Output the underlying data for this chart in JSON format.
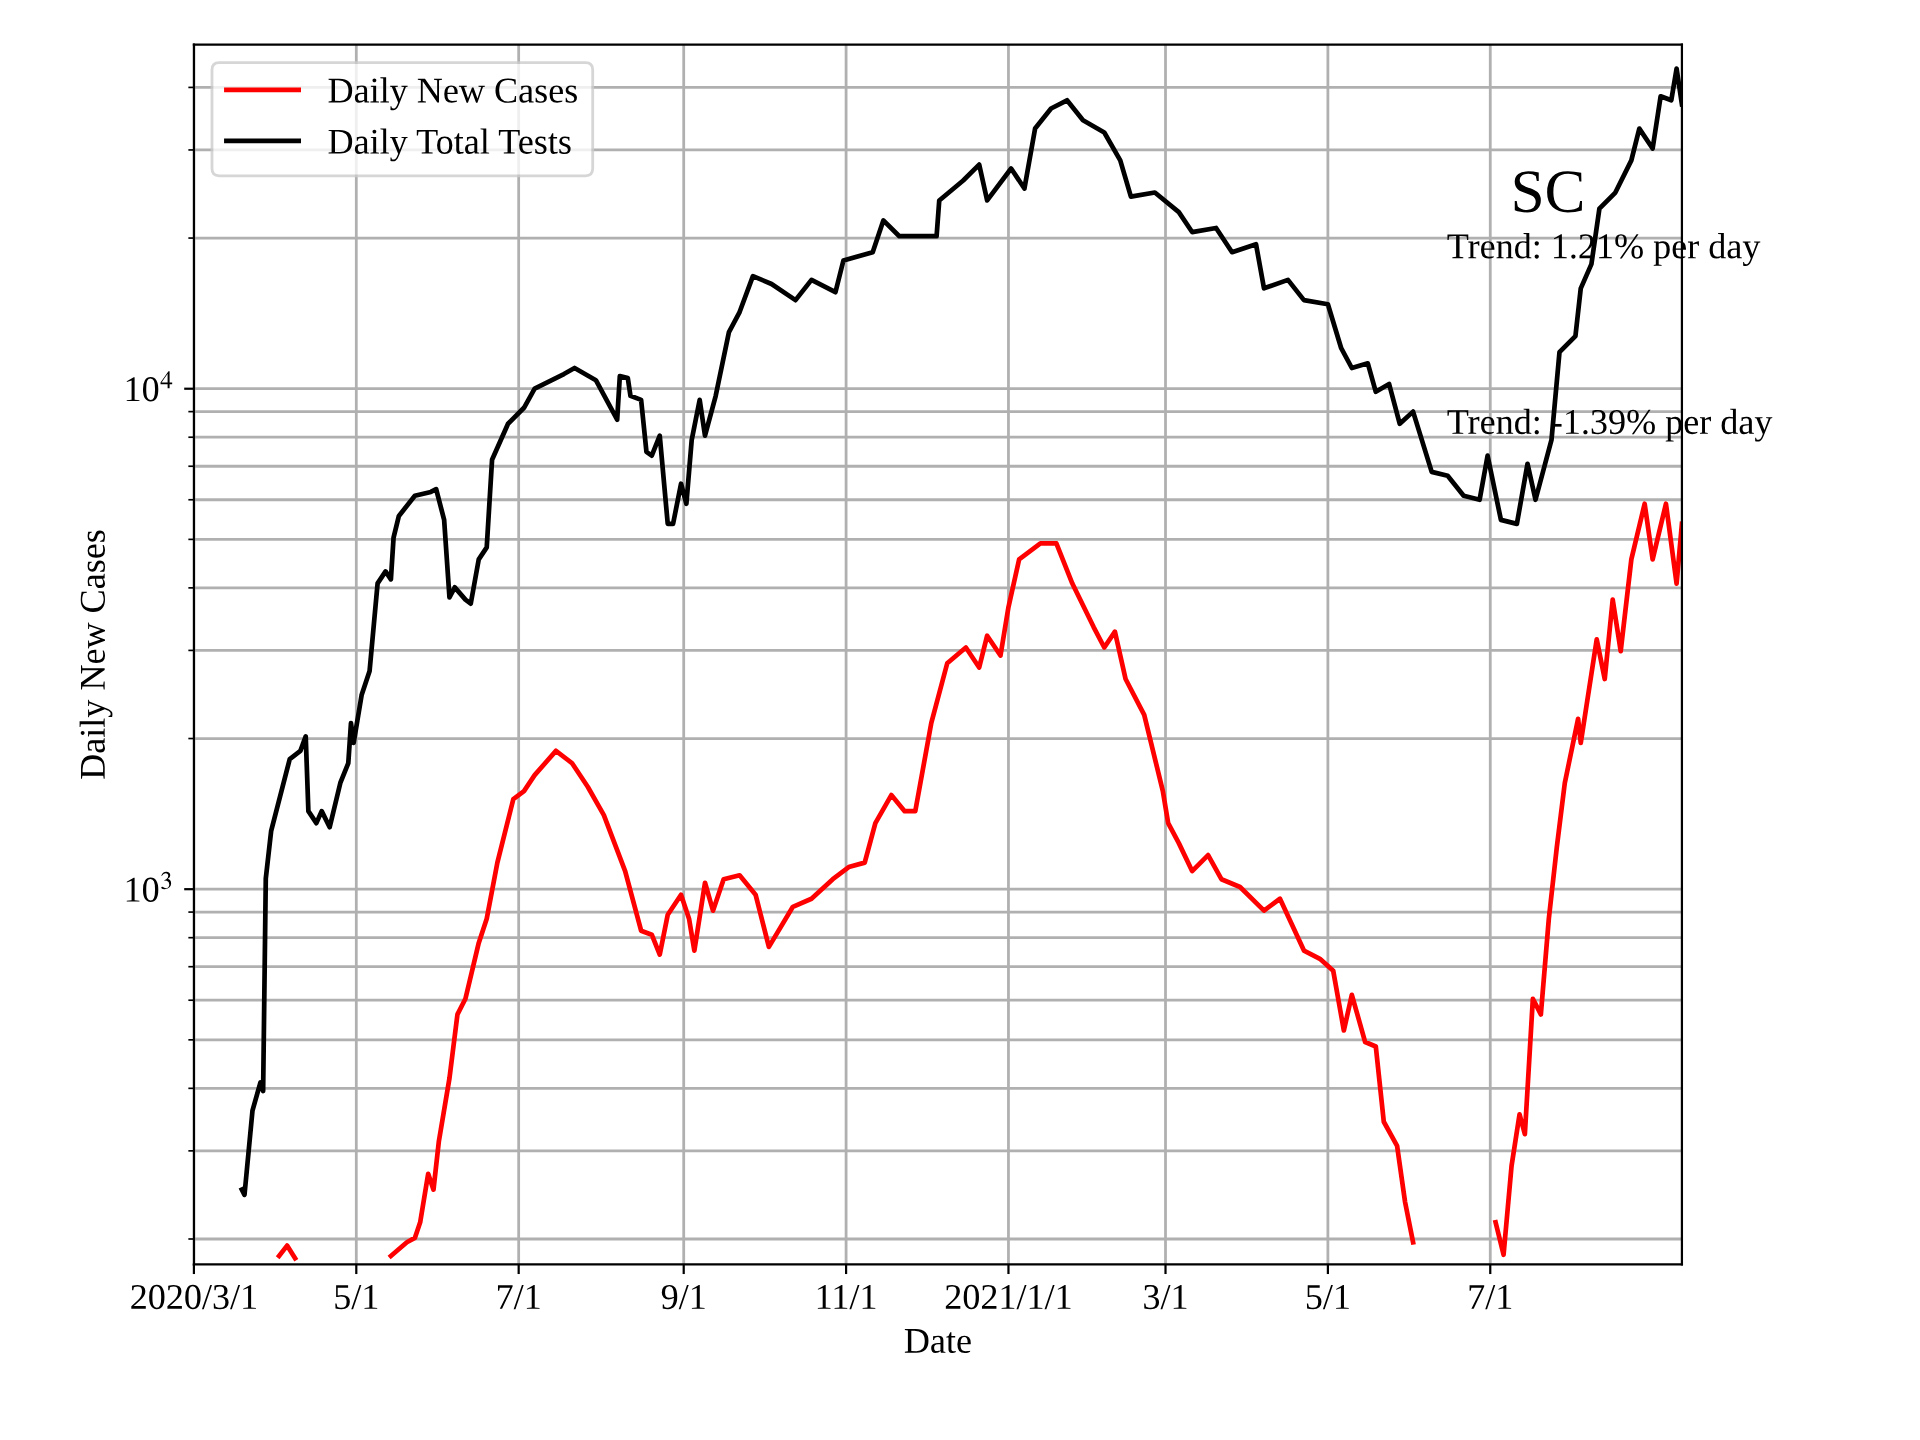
{
  "chart_data": {
    "type": "line",
    "xlabel": "Date",
    "ylabel": "Daily New Cases",
    "log": "y",
    "grid": true,
    "legend": "top left",
    "xlim": [
      "2020-03-01",
      "2021-09-11"
    ],
    "xticks": [
      {
        "value": "2020-03-01",
        "label": "2020/3/1"
      },
      {
        "value": "2020-05-01",
        "label": "5/1"
      },
      {
        "value": "2020-07-01",
        "label": "7/1"
      },
      {
        "value": "2020-09-01",
        "label": "9/1"
      },
      {
        "value": "2020-11-01",
        "label": "11/1"
      },
      {
        "value": "2021-01-01",
        "label": "2021/1/1"
      },
      {
        "value": "2021-03-01",
        "label": "3/1"
      },
      {
        "value": "2021-05-01",
        "label": "5/1"
      },
      {
        "value": "2021-07-01",
        "label": "7/1"
      }
    ],
    "ylim": [
      178,
      48700
    ],
    "yticks": [
      {
        "value": 200,
        "label": null
      },
      {
        "value": 300,
        "label": null
      },
      {
        "value": 400,
        "label": null
      },
      {
        "value": 500,
        "label": null
      },
      {
        "value": 600,
        "label": null
      },
      {
        "value": 700,
        "label": null
      },
      {
        "value": 800,
        "label": null
      },
      {
        "value": 900,
        "label": null
      },
      {
        "value": 1000,
        "label": "10$^{3}$"
      },
      {
        "value": 2000,
        "label": null
      },
      {
        "value": 3000,
        "label": null
      },
      {
        "value": 4000,
        "label": null
      },
      {
        "value": 5000,
        "label": null
      },
      {
        "value": 6000,
        "label": null
      },
      {
        "value": 7000,
        "label": null
      },
      {
        "value": 8000,
        "label": null
      },
      {
        "value": 9000,
        "label": null
      },
      {
        "value": 10000,
        "label": "10$^{4}$"
      },
      {
        "value": 20000,
        "label": null
      },
      {
        "value": 30000,
        "label": null
      },
      {
        "value": 40000,
        "label": null
      }
    ],
    "annotations": [
      "SC",
      "Trend: 1.21% per day",
      "Trend: -1.39% per day"
    ],
    "series": [
      {
        "name": "Daily New Cases",
        "color": "#ff0000",
        "x": [
          "2020-04-02",
          "2020-04-05",
          "2020-04-08",
          "2020-04-20",
          "2020-05-14",
          "2020-05-20",
          "2020-05-23",
          "2020-05-25",
          "2020-05-28",
          "2020-05-30",
          "2020-06-01",
          "2020-06-05",
          "2020-06-08",
          "2020-06-11",
          "2020-06-16",
          "2020-06-19",
          "2020-06-23",
          "2020-06-29",
          "2020-07-03",
          "2020-07-07",
          "2020-07-15",
          "2020-07-21",
          "2020-07-27",
          "2020-08-02",
          "2020-08-10",
          "2020-08-16",
          "2020-08-20",
          "2020-08-23",
          "2020-08-26",
          "2020-08-31",
          "2020-09-03",
          "2020-09-05",
          "2020-09-09",
          "2020-09-12",
          "2020-09-16",
          "2020-09-22",
          "2020-09-28",
          "2020-10-03",
          "2020-10-12",
          "2020-10-19",
          "2020-10-27",
          "2020-11-02",
          "2020-11-08",
          "2020-11-12",
          "2020-11-18",
          "2020-11-23",
          "2020-11-27",
          "2020-12-03",
          "2020-12-09",
          "2020-12-16",
          "2020-12-21",
          "2020-12-24",
          "2020-12-29",
          "2021-01-01",
          "2021-01-05",
          "2021-01-13",
          "2021-01-19",
          "2021-01-25",
          "2021-02-02",
          "2021-02-06",
          "2021-02-10",
          "2021-02-14",
          "2021-02-21",
          "2021-02-28",
          "2021-03-02",
          "2021-03-06",
          "2021-03-11",
          "2021-03-17",
          "2021-03-22",
          "2021-03-29",
          "2021-04-07",
          "2021-04-13",
          "2021-04-22",
          "2021-04-28",
          "2021-05-03",
          "2021-05-07",
          "2021-05-10",
          "2021-05-15",
          "2021-05-19",
          "2021-05-22",
          "2021-05-27",
          "2021-05-30",
          "2021-06-02",
          "2021-06-15",
          "2021-07-03",
          "2021-07-06",
          "2021-07-09",
          "2021-07-12",
          "2021-07-14",
          "2021-07-17",
          "2021-07-20",
          "2021-07-23",
          "2021-07-26",
          "2021-07-29",
          "2021-08-03",
          "2021-08-04",
          "2021-08-10",
          "2021-08-13",
          "2021-08-16",
          "2021-08-19",
          "2021-08-23",
          "2021-08-28",
          "2021-08-31",
          "2021-09-05",
          "2021-09-09",
          "2021-09-11"
        ],
        "values": [
          185,
          194,
          183,
          null,
          185,
          197,
          201,
          216,
          270,
          251,
          313,
          419,
          562,
          604,
          781,
          873,
          1130,
          1514,
          1570,
          1690,
          1890,
          1787,
          1600,
          1406,
          1087,
          826,
          811,
          740,
          889,
          975,
          873,
          754,
          1030,
          906,
          1047,
          1066,
          975,
          767,
          922,
          957,
          1047,
          1107,
          1130,
          1355,
          1542,
          1432,
          1432,
          2147,
          2828,
          3040,
          2773,
          3210,
          2930,
          3660,
          4560,
          4910,
          4910,
          4080,
          3340,
          3040,
          3270,
          2630,
          2230,
          1570,
          1355,
          1236,
          1087,
          1170,
          1047,
          1010,
          906,
          957,
          754,
          726,
          687,
          522,
          615,
          495,
          485,
          343,
          307,
          237,
          197,
          null,
          216,
          186,
          280,
          355,
          324,
          604,
          562,
          873,
          1213,
          1630,
          2190,
          1960,
          3155,
          2630,
          3790,
          2990,
          4560,
          5890,
          4560,
          5890,
          4080,
          5370
        ]
      },
      {
        "name": "Daily Total Tests",
        "color": "#000000",
        "x": [
          "2020-03-19",
          "2020-03-20",
          "2020-03-23",
          "2020-03-26",
          "2020-03-27",
          "2020-03-28",
          "2020-03-30",
          "2020-04-06",
          "2020-04-10",
          "2020-04-12",
          "2020-04-13",
          "2020-04-16",
          "2020-04-18",
          "2020-04-21",
          "2020-04-25",
          "2020-04-28",
          "2020-04-29",
          "2020-04-30",
          "2020-05-03",
          "2020-05-06",
          "2020-05-09",
          "2020-05-12",
          "2020-05-14",
          "2020-05-15",
          "2020-05-17",
          "2020-05-23",
          "2020-05-29",
          "2020-05-31",
          "2020-06-03",
          "2020-06-05",
          "2020-06-07",
          "2020-06-11",
          "2020-06-13",
          "2020-06-16",
          "2020-06-19",
          "2020-06-21",
          "2020-06-27",
          "2020-07-03",
          "2020-07-07",
          "2020-07-18",
          "2020-07-22",
          "2020-07-30",
          "2020-08-07",
          "2020-08-08",
          "2020-08-11",
          "2020-08-12",
          "2020-08-16",
          "2020-08-18",
          "2020-08-20",
          "2020-08-23",
          "2020-08-26",
          "2020-08-28",
          "2020-08-31",
          "2020-09-02",
          "2020-09-04",
          "2020-09-07",
          "2020-09-09",
          "2020-09-13",
          "2020-09-18",
          "2020-09-22",
          "2020-09-27",
          "2020-10-04",
          "2020-10-13",
          "2020-10-19",
          "2020-10-28",
          "2020-10-31",
          "2020-11-11",
          "2020-11-15",
          "2020-11-21",
          "2020-12-05",
          "2020-12-06",
          "2020-12-15",
          "2020-12-21",
          "2020-12-24",
          "2021-01-02",
          "2021-01-07",
          "2021-01-11",
          "2021-01-17",
          "2021-01-23",
          "2021-01-29",
          "2021-02-06",
          "2021-02-12",
          "2021-02-16",
          "2021-02-25",
          "2021-03-06",
          "2021-03-11",
          "2021-03-20",
          "2021-03-26",
          "2021-04-04",
          "2021-04-07",
          "2021-04-16",
          "2021-04-22",
          "2021-05-01",
          "2021-05-06",
          "2021-05-10",
          "2021-05-16",
          "2021-05-19",
          "2021-05-24",
          "2021-05-28",
          "2021-06-02",
          "2021-06-09",
          "2021-06-15",
          "2021-06-21",
          "2021-06-27",
          "2021-06-30",
          "2021-07-05",
          "2021-07-11",
          "2021-07-15",
          "2021-07-18",
          "2021-07-24",
          "2021-07-27",
          "2021-08-02",
          "2021-08-04",
          "2021-08-08",
          "2021-08-11",
          "2021-08-17",
          "2021-08-23",
          "2021-08-26",
          "2021-08-31",
          "2021-09-03",
          "2021-09-07",
          "2021-09-09",
          "2021-09-11"
        ],
        "values": [
          251,
          245,
          361,
          411,
          395,
          1050,
          1306,
          1820,
          1890,
          2020,
          1432,
          1355,
          1432,
          1330,
          1630,
          1787,
          2147,
          1960,
          2443,
          2730,
          4083,
          4315,
          4160,
          5040,
          5570,
          6110,
          6220,
          6300,
          5470,
          3830,
          4010,
          3790,
          3720,
          4560,
          4820,
          7210,
          8510,
          9160,
          10000,
          10700,
          11000,
          10400,
          8670,
          10600,
          10500,
          9680,
          9500,
          7480,
          7350,
          8060,
          5370,
          5370,
          6460,
          5890,
          7900,
          9500,
          8060,
          9670,
          12980,
          14230,
          16790,
          16190,
          15030,
          16500,
          15590,
          18040,
          18740,
          21690,
          20170,
          20170,
          23780,
          26060,
          28050,
          23780,
          27540,
          25120,
          33100,
          36300,
          37700,
          34400,
          32500,
          28600,
          24210,
          24660,
          22540,
          20560,
          20950,
          18740,
          19440,
          15870,
          16500,
          15030,
          14750,
          12050,
          11000,
          11240,
          9860,
          10220,
          8510,
          9000,
          6820,
          6700,
          6110,
          6000,
          7350,
          5470,
          5370,
          7080,
          6000,
          7900,
          11830,
          12740,
          15870,
          17740,
          22900,
          24660,
          28600,
          33100,
          30200,
          38400,
          37700,
          43600,
          37000
        ]
      }
    ]
  }
}
